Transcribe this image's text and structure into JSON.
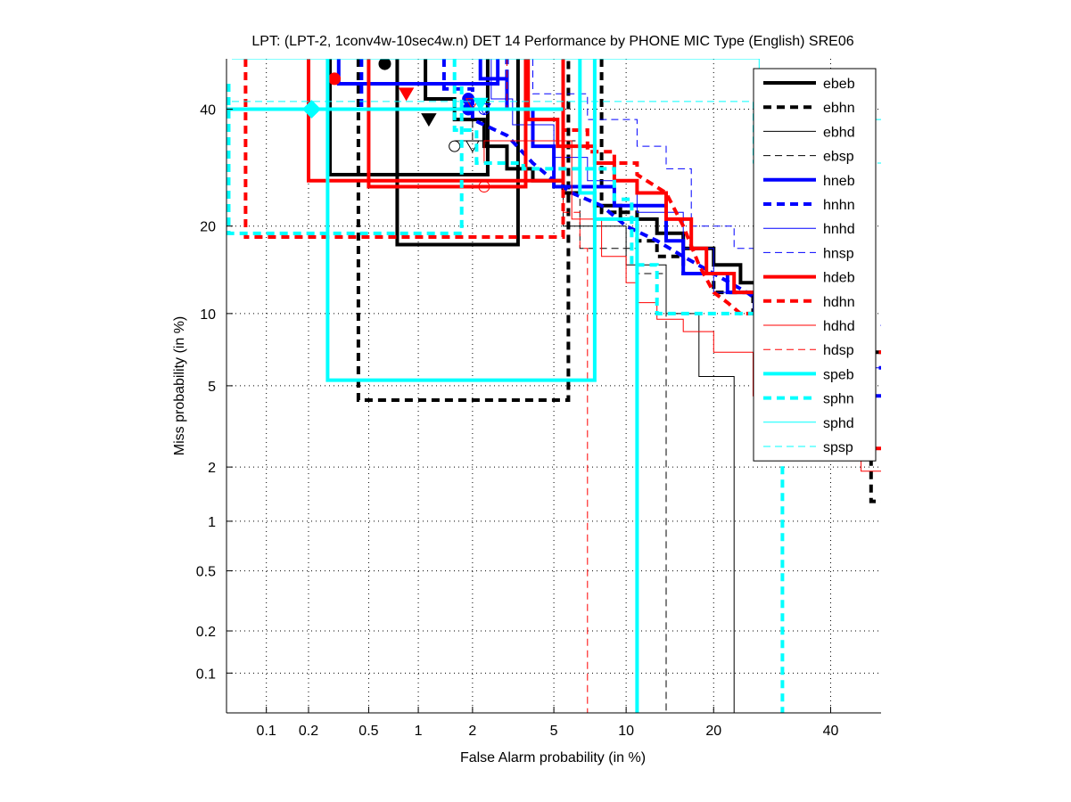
{
  "chart_data": {
    "type": "line",
    "scale": "normal-deviate (DET)",
    "title": "LPT: (LPT-2, 1conv4w-10sec4w.n) DET 14 Performance by PHONE MIC Type (English) SRE06",
    "xlabel": "False Alarm probability (in %)",
    "ylabel": "Miss probability (in %)",
    "xlim": [
      0.05,
      50
    ],
    "ylim": [
      0.05,
      50
    ],
    "grid": true,
    "legend_position": "top-right",
    "xticks": [
      "0.1",
      "0.2",
      "0.5",
      "1",
      "2",
      "5",
      "10",
      "20",
      "40"
    ],
    "xtick_values": [
      0.1,
      0.2,
      0.5,
      1,
      2,
      5,
      10,
      20,
      40
    ],
    "yticks": [
      "0.1",
      "0.2",
      "0.5",
      "1",
      "2",
      "5",
      "10",
      "20",
      "40"
    ],
    "ytick_values": [
      0.1,
      0.2,
      0.5,
      1,
      2,
      5,
      10,
      20,
      40
    ],
    "series": [
      {
        "name": "ebeb",
        "color": "#000000",
        "style": "solid",
        "weight": "thick",
        "curve": [
          [
            1.1,
            50
          ],
          [
            1.1,
            42
          ],
          [
            1.6,
            42
          ],
          [
            1.6,
            38
          ],
          [
            2.3,
            38
          ],
          [
            2.3,
            33
          ],
          [
            3,
            33
          ],
          [
            3,
            29
          ],
          [
            4,
            29
          ],
          [
            4,
            27
          ],
          [
            5.5,
            27
          ],
          [
            5.5,
            25
          ],
          [
            7.5,
            25
          ],
          [
            7.5,
            23
          ],
          [
            9.5,
            23
          ],
          [
            9.5,
            21
          ],
          [
            13,
            21
          ],
          [
            13,
            19
          ],
          [
            16,
            19
          ],
          [
            16,
            17
          ],
          [
            20,
            17
          ],
          [
            20,
            15
          ],
          [
            24,
            15
          ],
          [
            24,
            13
          ],
          [
            27,
            13
          ],
          [
            27,
            11
          ],
          [
            30,
            11
          ],
          [
            30,
            10
          ],
          [
            36,
            10
          ],
          [
            36,
            9
          ],
          [
            44,
            9
          ],
          [
            44,
            8
          ],
          [
            48,
            8
          ],
          [
            48,
            7
          ],
          [
            50,
            7
          ]
        ],
        "box": [
          0.75,
          3.4,
          17.5,
          50
        ],
        "box2": [
          0.28,
          2.4,
          28,
          50
        ],
        "marker": "circle-filled",
        "marker_at": [
          0.63,
          49
        ]
      },
      {
        "name": "ebhn",
        "color": "#000000",
        "style": "dashed",
        "weight": "thick",
        "curve": [
          [
            8,
            50
          ],
          [
            8,
            22
          ],
          [
            11,
            22
          ],
          [
            11,
            18
          ],
          [
            13,
            18
          ],
          [
            13,
            16
          ],
          [
            16,
            16
          ],
          [
            16,
            14
          ],
          [
            20,
            14
          ],
          [
            20,
            12
          ],
          [
            26,
            12
          ],
          [
            26,
            10
          ],
          [
            40,
            10
          ],
          [
            40,
            5
          ],
          [
            46,
            5
          ],
          [
            46,
            2.5
          ],
          [
            48,
            2.5
          ],
          [
            48,
            1.3
          ],
          [
            50,
            1.3
          ]
        ],
        "box": [
          0.43,
          5.8,
          4.3,
          50
        ],
        "marker": "triangle-filled",
        "marker_at": [
          1.15,
          38
        ]
      },
      {
        "name": "ebhd",
        "color": "#000000",
        "style": "solid",
        "weight": "thin",
        "curve": [
          [
            1.6,
            34
          ],
          [
            5.5,
            34
          ],
          [
            5.5,
            20
          ],
          [
            10,
            20
          ],
          [
            10,
            15
          ],
          [
            14,
            15
          ],
          [
            14,
            10
          ],
          [
            18,
            10
          ],
          [
            18,
            5.5
          ],
          [
            23,
            5.5
          ],
          [
            23,
            0.05
          ]
        ],
        "marker": "circle-open",
        "marker_at": [
          1.6,
          33
        ]
      },
      {
        "name": "ebsp",
        "color": "#000000",
        "style": "dashed",
        "weight": "thin",
        "curve": [
          [
            2,
            40
          ],
          [
            2,
            34
          ],
          [
            6.5,
            34
          ],
          [
            6.5,
            17
          ],
          [
            11,
            17
          ],
          [
            11,
            14
          ],
          [
            14,
            14
          ],
          [
            14,
            0.05
          ]
        ],
        "marker": "triangle-open",
        "marker_at": [
          2,
          33
        ]
      },
      {
        "name": "hneb",
        "color": "#0000ff",
        "style": "solid",
        "weight": "thick",
        "curve": [
          [
            2.2,
            50
          ],
          [
            2.2,
            46
          ],
          [
            3,
            46
          ],
          [
            3,
            40
          ],
          [
            4,
            40
          ],
          [
            4,
            33
          ],
          [
            5,
            33
          ],
          [
            5,
            26
          ],
          [
            9,
            26
          ],
          [
            9,
            23
          ],
          [
            14,
            23
          ],
          [
            14,
            18
          ],
          [
            16,
            18
          ],
          [
            16,
            14
          ],
          [
            22,
            14
          ],
          [
            22,
            12
          ],
          [
            28,
            12
          ],
          [
            28,
            10
          ],
          [
            40,
            10
          ],
          [
            40,
            8
          ],
          [
            44,
            8
          ],
          [
            44,
            4.5
          ],
          [
            50,
            4.5
          ]
        ],
        "box": [
          0.32,
          2.7,
          45,
          50
        ],
        "marker": "circle-filled",
        "marker_at": [
          1.9,
          42
        ]
      },
      {
        "name": "hnhn",
        "color": "#0000ff",
        "style": "dashed",
        "weight": "thick",
        "curve": [
          [
            1.4,
            50
          ],
          [
            1.4,
            44
          ],
          [
            2,
            44
          ],
          [
            2,
            38
          ],
          [
            3,
            35
          ],
          [
            4,
            30
          ],
          [
            5,
            27
          ],
          [
            6,
            25
          ],
          [
            8,
            23
          ],
          [
            10,
            20
          ],
          [
            13,
            18
          ],
          [
            16,
            16
          ],
          [
            20,
            14
          ],
          [
            25,
            12
          ],
          [
            30,
            10
          ],
          [
            36,
            9
          ],
          [
            44,
            6
          ],
          [
            50,
            6
          ]
        ],
        "box": [
          0.45,
          3.0,
          40,
          50
        ],
        "marker": "circle-filled",
        "marker_at": [
          1.9,
          40
        ]
      },
      {
        "name": "hnhd",
        "color": "#0000ff",
        "style": "solid",
        "weight": "thin",
        "curve": [
          [
            2.5,
            50
          ],
          [
            2.5,
            42
          ],
          [
            3.2,
            42
          ],
          [
            3.2,
            37
          ],
          [
            5,
            37
          ],
          [
            5,
            31
          ],
          [
            7,
            31
          ],
          [
            7,
            27
          ],
          [
            11,
            27
          ],
          [
            11,
            22
          ],
          [
            16,
            22
          ],
          [
            16,
            17
          ],
          [
            20,
            17
          ],
          [
            20,
            12
          ],
          [
            26,
            12
          ],
          [
            26,
            10
          ],
          [
            40,
            10
          ],
          [
            40,
            6
          ],
          [
            50,
            6
          ]
        ],
        "marker": "circle-open",
        "marker_at": [
          2.3,
          40
        ]
      },
      {
        "name": "hnsp",
        "color": "#0000ff",
        "style": "dashed",
        "weight": "thin",
        "curve": [
          [
            4,
            50
          ],
          [
            4,
            43
          ],
          [
            7,
            43
          ],
          [
            7,
            38
          ],
          [
            11,
            38
          ],
          [
            11,
            33
          ],
          [
            14,
            33
          ],
          [
            14,
            29
          ],
          [
            17,
            29
          ],
          [
            17,
            20
          ],
          [
            23,
            20
          ],
          [
            23,
            17
          ],
          [
            28,
            17
          ],
          [
            28,
            11
          ],
          [
            40,
            11
          ],
          [
            40,
            9
          ],
          [
            50,
            9
          ]
        ],
        "marker": "triangle-open",
        "marker_at": [
          2.3,
          40
        ]
      },
      {
        "name": "hdeb",
        "color": "#ff0000",
        "style": "solid",
        "weight": "thick",
        "curve": [
          [
            3.8,
            50
          ],
          [
            3.8,
            38
          ],
          [
            5.2,
            38
          ],
          [
            5.2,
            33
          ],
          [
            7.5,
            33
          ],
          [
            7.5,
            30
          ],
          [
            9,
            30
          ],
          [
            9,
            27
          ],
          [
            11,
            27
          ],
          [
            11,
            25
          ],
          [
            14,
            25
          ],
          [
            14,
            21
          ],
          [
            17,
            21
          ],
          [
            17,
            17
          ],
          [
            19,
            17
          ],
          [
            19,
            14
          ],
          [
            23,
            14
          ],
          [
            23,
            12
          ],
          [
            27,
            12
          ],
          [
            27,
            10
          ],
          [
            40,
            10
          ],
          [
            40,
            4
          ],
          [
            44,
            4
          ],
          [
            44,
            2.5
          ],
          [
            50,
            2.5
          ]
        ],
        "box": [
          0.5,
          3.7,
          26,
          50
        ],
        "box2": [
          0.2,
          5.5,
          27,
          50
        ],
        "marker": "circle-filled",
        "marker_at": [
          0.3,
          46
        ]
      },
      {
        "name": "hdhn",
        "color": "#ff0000",
        "style": "dashed",
        "weight": "thick",
        "curve": [
          [
            5.5,
            50
          ],
          [
            5.5,
            36
          ],
          [
            7,
            36
          ],
          [
            7,
            32
          ],
          [
            9,
            32
          ],
          [
            9,
            30
          ],
          [
            11,
            30
          ],
          [
            11,
            28
          ],
          [
            14,
            25
          ],
          [
            16,
            20
          ],
          [
            18,
            15
          ],
          [
            20,
            12
          ],
          [
            22,
            11
          ],
          [
            24,
            10
          ],
          [
            30,
            10
          ],
          [
            40,
            9
          ],
          [
            44,
            7
          ],
          [
            50,
            7
          ]
        ],
        "box": [
          0.07,
          5.5,
          18.5,
          50
        ],
        "marker": "triangle-filled",
        "marker_at": [
          0.85,
          43
        ]
      },
      {
        "name": "hdhd",
        "color": "#ff0000",
        "style": "solid",
        "weight": "thin",
        "curve": [
          [
            2.3,
            30
          ],
          [
            2.3,
            34
          ],
          [
            6,
            34
          ],
          [
            6,
            21
          ],
          [
            8,
            21
          ],
          [
            8,
            16
          ],
          [
            10,
            16
          ],
          [
            10,
            13
          ],
          [
            11,
            13
          ],
          [
            11,
            11
          ],
          [
            13,
            11
          ],
          [
            13,
            9.5
          ],
          [
            16,
            9.5
          ],
          [
            16,
            8.5
          ],
          [
            20,
            8.5
          ],
          [
            20,
            7
          ],
          [
            26,
            7
          ],
          [
            26,
            4.5
          ],
          [
            46,
            4.5
          ],
          [
            46,
            1.9
          ],
          [
            50,
            1.9
          ]
        ],
        "marker": "circle-open",
        "marker_at": [
          2.3,
          26
        ]
      },
      {
        "name": "hdsp",
        "color": "#ff0000",
        "style": "dashed",
        "weight": "thin",
        "curve": [
          [
            3,
            50
          ],
          [
            3,
            40
          ],
          [
            5.5,
            40
          ],
          [
            5.5,
            22
          ],
          [
            6.5,
            22
          ],
          [
            6.5,
            17
          ],
          [
            7,
            17
          ],
          [
            7,
            0.05
          ]
        ],
        "marker": "triangle-open",
        "marker_at": [
          2.0,
          41
        ]
      },
      {
        "name": "speb",
        "color": "#00ffff",
        "style": "solid",
        "weight": "thick",
        "curve": [
          [
            6.5,
            50
          ],
          [
            6.5,
            25
          ],
          [
            7.5,
            25
          ],
          [
            7.5,
            21
          ],
          [
            11,
            21
          ],
          [
            11,
            0.05
          ]
        ],
        "box": [
          0.27,
          7.5,
          5.3,
          50
        ],
        "box2": [
          0.05,
          5.5,
          40,
          40
        ],
        "marker": "diamond-filled",
        "marker_at": [
          0.21,
          40
        ]
      },
      {
        "name": "sphn",
        "color": "#00ffff",
        "style": "dashed",
        "weight": "thick",
        "curve": [
          [
            1.6,
            50
          ],
          [
            1.6,
            36
          ],
          [
            2.1,
            36
          ],
          [
            2.1,
            30
          ],
          [
            3.6,
            30
          ],
          [
            3.6,
            29
          ],
          [
            9,
            29
          ],
          [
            9,
            24
          ],
          [
            10.5,
            24
          ],
          [
            10.5,
            15
          ],
          [
            13,
            15
          ],
          [
            13,
            10
          ],
          [
            31,
            10
          ],
          [
            31,
            0.05
          ]
        ],
        "box": [
          0.052,
          1.75,
          19,
          45
        ],
        "marker": "triangle-filled",
        "marker_at": [
          2.2,
          41
        ]
      },
      {
        "name": "sphd",
        "color": "#00ffff",
        "style": "solid",
        "weight": "thin",
        "curve": [
          [
            0.055,
            50
          ],
          [
            27,
            50
          ],
          [
            27,
            38
          ],
          [
            50,
            38
          ]
        ],
        "marker": "none",
        "marker_at": [
          27,
          38
        ]
      },
      {
        "name": "spsp",
        "color": "#00ffff",
        "style": "dashed",
        "weight": "thin",
        "curve": [
          [
            0.055,
            41.5
          ],
          [
            26,
            41.5
          ],
          [
            26,
            30
          ],
          [
            50,
            30
          ]
        ],
        "marker": "none",
        "marker_at": [
          26,
          30
        ]
      }
    ]
  }
}
